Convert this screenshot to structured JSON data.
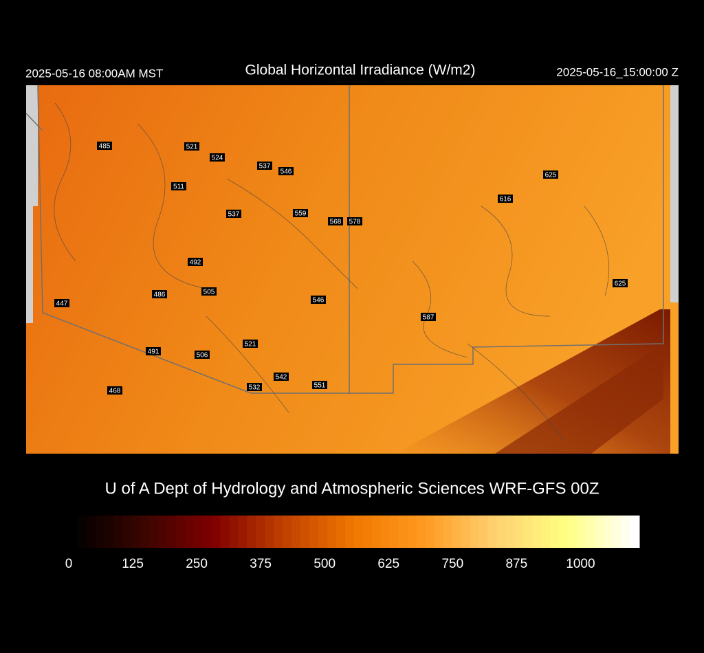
{
  "header": {
    "left": "2025-05-16 08:00AM MST",
    "title": "Global Horizontal Irradiance (W/m2)",
    "right": "2025-05-16_15:00:00 Z"
  },
  "map": {
    "labels": [
      485,
      521,
      524,
      537,
      546,
      511,
      537,
      559,
      568,
      578,
      625,
      616,
      492,
      625,
      505,
      486,
      447,
      546,
      587,
      521,
      491,
      506,
      542,
      532,
      551,
      468
    ]
  },
  "credit": "U of A Dept of Hydrology and Atmospheric Sciences WRF-GFS 00Z",
  "colorbar": {
    "lim": [
      0,
      1115
    ],
    "ticks": [
      0,
      125,
      250,
      375,
      500,
      625,
      750,
      875,
      1000
    ],
    "colors": [
      "#000000",
      "#3a0500",
      "#800000",
      "#c04000",
      "#f07800",
      "#ff9a20",
      "#ffd070",
      "#ffff80",
      "#ffffff"
    ]
  }
}
